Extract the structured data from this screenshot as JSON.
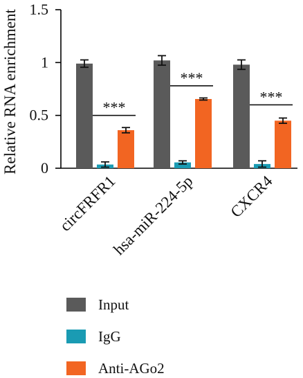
{
  "chart_data": {
    "type": "bar",
    "title": "",
    "xlabel": "",
    "ylabel": "Relative RNA enrichment",
    "ylim": [
      0,
      1.5
    ],
    "yticks": [
      0,
      0.5,
      1,
      1.5
    ],
    "ytick_labels": [
      "0",
      "0.5",
      "1",
      "1.5"
    ],
    "categories": [
      "circFRFR1",
      "hsa-miR-224-5p",
      "CXCR4"
    ],
    "series": [
      {
        "name": "Input",
        "color": "#5a5a5a",
        "values": [
          0.99,
          1.02,
          0.98
        ],
        "errors": [
          0.035,
          0.045,
          0.045
        ]
      },
      {
        "name": "IgG",
        "color": "#1a9bb3",
        "values": [
          0.035,
          0.055,
          0.04
        ],
        "errors": [
          0.025,
          0.015,
          0.03
        ]
      },
      {
        "name": "Anti-AGo2",
        "color": "#f26522",
        "values": [
          0.36,
          0.655,
          0.45
        ],
        "errors": [
          0.025,
          0.01,
          0.025
        ]
      }
    ],
    "significance": [
      {
        "category_index": 0,
        "between": [
          "IgG",
          "Anti-AGo2"
        ],
        "label": "***",
        "y": 0.5
      },
      {
        "category_index": 1,
        "between": [
          "IgG",
          "Anti-AGo2"
        ],
        "label": "***",
        "y": 0.78
      },
      {
        "category_index": 2,
        "between": [
          "IgG",
          "Anti-AGo2"
        ],
        "label": "***",
        "y": 0.6
      }
    ],
    "grid": false,
    "legend_position": "bottom"
  }
}
